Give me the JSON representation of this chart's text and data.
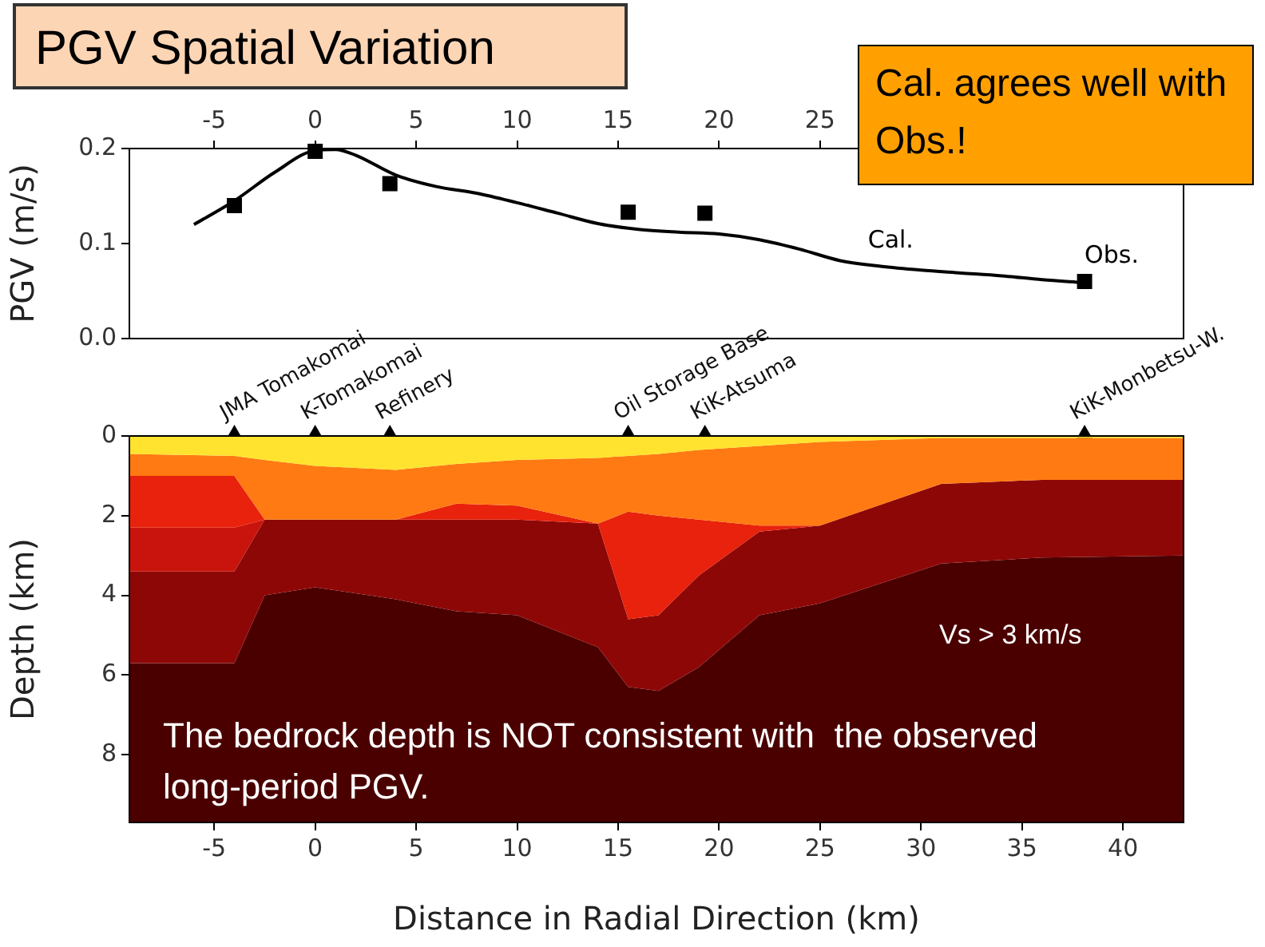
{
  "chart_data": [
    {
      "type": "line",
      "title": "PGV Spatial Variation",
      "ylabel": "PGV (m/s)",
      "xlim": [
        -9.2,
        43
      ],
      "xticks": [
        -5,
        0,
        5,
        10,
        15,
        20,
        25
      ],
      "ylim": [
        0,
        0.2
      ],
      "yticks": [
        {
          "value": 0,
          "label": "0.0"
        },
        {
          "value": 0.1,
          "label": "0.1"
        },
        {
          "value": 0.2,
          "label": "0.2"
        }
      ],
      "grid": false,
      "legend": false,
      "annotations": [
        "Cal. agrees well with Obs.!"
      ],
      "series": [
        {
          "name": "Cal.",
          "color": "#000000",
          "marker": "none",
          "line_style": "solid",
          "x": [
            -6,
            -4,
            -2,
            0,
            1,
            2,
            4,
            6,
            8,
            10,
            12,
            14,
            16,
            18,
            20,
            22,
            24,
            26,
            28,
            30,
            32,
            34,
            36,
            38
          ],
          "values": [
            0.12,
            0.145,
            0.175,
            0.198,
            0.199,
            0.193,
            0.172,
            0.16,
            0.153,
            0.143,
            0.132,
            0.121,
            0.115,
            0.112,
            0.11,
            0.104,
            0.094,
            0.082,
            0.076,
            0.072,
            0.069,
            0.066,
            0.062,
            0.059
          ]
        },
        {
          "type": "scatter",
          "name": "Obs.",
          "color": "#000000",
          "marker": "square",
          "x": [
            -4,
            0,
            3.7,
            15.5,
            19.3,
            38.1
          ],
          "values": [
            0.14,
            0.197,
            0.163,
            0.133,
            0.132,
            0.06
          ]
        }
      ]
    },
    {
      "type": "area",
      "stacked": true,
      "xlabel": "Distance in Radial Direction (km)",
      "ylabel": "Depth (km)",
      "xlim": [
        -9.2,
        43
      ],
      "xticks": [
        -5,
        0,
        5,
        10,
        15,
        20,
        25,
        30,
        35,
        40
      ],
      "ylim": [
        9.7,
        0
      ],
      "yticks": [
        0,
        2,
        4,
        6,
        8
      ],
      "grid": false,
      "legend": false,
      "annotations": [
        "The bedrock depth is NOT consistent with  the observed long-period PGV.",
        "Vs > 3 km/s",
        {
          "text": "JMA Tomakomai",
          "x": -4,
          "y": 0
        },
        {
          "text": "K-Tomakomai",
          "x": 0,
          "y": 0
        },
        {
          "text": "Refinery",
          "x": 3.7,
          "y": 0
        },
        {
          "text": "Oil Storage Base",
          "x": 15.5,
          "y": 0
        },
        {
          "text": "KiK-Atsuma",
          "x": 19.3,
          "y": 0
        },
        {
          "text": "KiK-Monbetsu-W.",
          "x": 38.1,
          "y": 0
        }
      ],
      "x": [
        -9.2,
        -4,
        -2.5,
        0,
        4,
        7,
        10,
        14,
        15.5,
        17,
        19,
        22,
        25,
        31,
        36,
        43
      ],
      "series": [
        {
          "color": "#ffe32e",
          "values": [
            0.45,
            0.5,
            0.6,
            0.75,
            0.85,
            0.7,
            0.6,
            0.55,
            0.5,
            0.45,
            0.35,
            0.25,
            0.15,
            0.05,
            0.05,
            0.05
          ]
        },
        {
          "color": "#ff7a12",
          "values": [
            0.55,
            0.5,
            1.5,
            1.35,
            1.25,
            1.0,
            1.15,
            1.65,
            1.4,
            1.55,
            1.75,
            2.0,
            2.1,
            1.15,
            1.05,
            1.05
          ]
        },
        {
          "color": "#e8220c",
          "values": [
            1.3,
            1.3,
            0,
            0,
            0,
            0.4,
            0.35,
            0,
            2.7,
            2.5,
            1.4,
            0.15,
            0,
            0,
            0,
            0
          ]
        },
        {
          "color": "#c8140c",
          "values": [
            1.1,
            1.1,
            0,
            0,
            0,
            0,
            0,
            0,
            0,
            0,
            0,
            0,
            0,
            0,
            0,
            0
          ]
        },
        {
          "color": "#8e0707",
          "values": [
            2.3,
            2.3,
            1.9,
            1.7,
            2.0,
            2.3,
            2.4,
            3.1,
            1.7,
            1.9,
            2.3,
            2.1,
            1.95,
            2.0,
            1.95,
            1.9
          ]
        },
        {
          "color": "#4b0000",
          "values": [
            4.0,
            4.0,
            5.7,
            5.9,
            5.6,
            5.3,
            5.2,
            4.4,
            3.4,
            3.3,
            3.9,
            5.2,
            5.5,
            6.5,
            6.65,
            6.7
          ]
        },
        {
          "type": "scatter",
          "color": "#000000",
          "marker": "triangle",
          "x": [
            -4,
            0,
            3.7,
            15.5,
            19.3,
            38.1
          ],
          "values": [
            0,
            0,
            0,
            0,
            0,
            0
          ]
        }
      ]
    }
  ]
}
